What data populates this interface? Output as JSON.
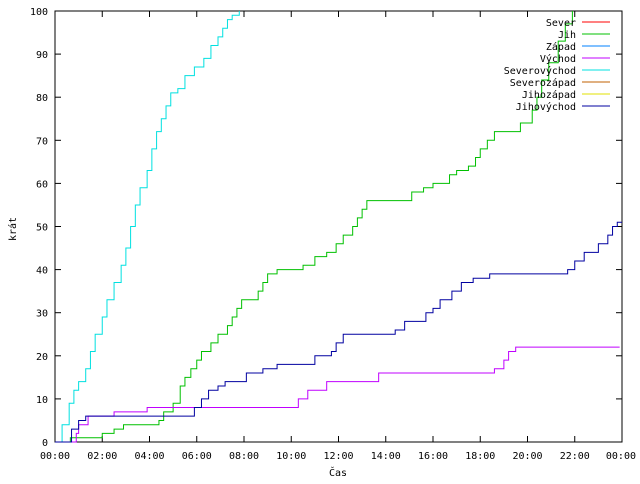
{
  "chart_data": {
    "type": "line",
    "xlabel": "Čas",
    "ylabel": "krát",
    "x_ticks": [
      "00:00",
      "02:00",
      "04:00",
      "06:00",
      "08:00",
      "10:00",
      "12:00",
      "14:00",
      "16:00",
      "18:00",
      "20:00",
      "22:00",
      "00:00"
    ],
    "y_ticks": [
      "0",
      "10",
      "20",
      "30",
      "40",
      "50",
      "60",
      "70",
      "80",
      "90",
      "100"
    ],
    "xlim": [
      0,
      24
    ],
    "ylim": [
      0,
      100
    ],
    "grid": false,
    "legend_position": "top-right",
    "x_unit": "hours",
    "series": [
      {
        "name": "Sever",
        "color": "#ff0000",
        "points": []
      },
      {
        "name": "Jih",
        "color": "#00c000",
        "points": [
          [
            0.0,
            0
          ],
          [
            0.65,
            1
          ],
          [
            2.0,
            2
          ],
          [
            2.5,
            3
          ],
          [
            2.9,
            4
          ],
          [
            4.4,
            5
          ],
          [
            4.6,
            7
          ],
          [
            5.0,
            9
          ],
          [
            5.3,
            13
          ],
          [
            5.5,
            15
          ],
          [
            5.75,
            17
          ],
          [
            6.0,
            19
          ],
          [
            6.2,
            21
          ],
          [
            6.6,
            23
          ],
          [
            6.9,
            25
          ],
          [
            7.3,
            27
          ],
          [
            7.5,
            29
          ],
          [
            7.7,
            31
          ],
          [
            7.9,
            33
          ],
          [
            8.6,
            35
          ],
          [
            8.8,
            37
          ],
          [
            9.0,
            39
          ],
          [
            9.4,
            40
          ],
          [
            10.5,
            41
          ],
          [
            11.0,
            43
          ],
          [
            11.5,
            44
          ],
          [
            11.9,
            46
          ],
          [
            12.2,
            48
          ],
          [
            12.6,
            50
          ],
          [
            12.8,
            52
          ],
          [
            13.0,
            54
          ],
          [
            13.2,
            56
          ],
          [
            15.1,
            58
          ],
          [
            15.6,
            59
          ],
          [
            16.0,
            60
          ],
          [
            16.7,
            62
          ],
          [
            17.0,
            63
          ],
          [
            17.5,
            64
          ],
          [
            17.8,
            66
          ],
          [
            18.0,
            68
          ],
          [
            18.3,
            70
          ],
          [
            18.6,
            72
          ],
          [
            19.7,
            74
          ],
          [
            20.2,
            77
          ],
          [
            20.4,
            80
          ],
          [
            20.6,
            84
          ],
          [
            20.9,
            88
          ],
          [
            21.3,
            93
          ],
          [
            21.6,
            97
          ],
          [
            21.9,
            100
          ]
        ]
      },
      {
        "name": "Západ",
        "color": "#0080ff",
        "points": []
      },
      {
        "name": "Východ",
        "color": "#c000ff",
        "points": [
          [
            0.0,
            0
          ],
          [
            0.9,
            2
          ],
          [
            1.0,
            4
          ],
          [
            1.4,
            6
          ],
          [
            2.5,
            7
          ],
          [
            3.9,
            8
          ],
          [
            10.3,
            10
          ],
          [
            10.7,
            12
          ],
          [
            11.5,
            14
          ],
          [
            13.7,
            16
          ],
          [
            18.6,
            17
          ],
          [
            19.0,
            19
          ],
          [
            19.2,
            21
          ],
          [
            19.5,
            22
          ],
          [
            23.9,
            22
          ]
        ]
      },
      {
        "name": "Severovýchod",
        "color": "#00e0e0",
        "points": [
          [
            0.0,
            0
          ],
          [
            0.3,
            4
          ],
          [
            0.6,
            9
          ],
          [
            0.8,
            12
          ],
          [
            1.0,
            14
          ],
          [
            1.3,
            17
          ],
          [
            1.5,
            21
          ],
          [
            1.7,
            25
          ],
          [
            2.0,
            29
          ],
          [
            2.2,
            33
          ],
          [
            2.5,
            37
          ],
          [
            2.8,
            41
          ],
          [
            3.0,
            45
          ],
          [
            3.2,
            50
          ],
          [
            3.4,
            55
          ],
          [
            3.6,
            59
          ],
          [
            3.9,
            63
          ],
          [
            4.1,
            68
          ],
          [
            4.3,
            72
          ],
          [
            4.5,
            75
          ],
          [
            4.7,
            78
          ],
          [
            4.9,
            81
          ],
          [
            5.2,
            82
          ],
          [
            5.5,
            85
          ],
          [
            5.9,
            87
          ],
          [
            6.3,
            89
          ],
          [
            6.6,
            92
          ],
          [
            6.9,
            94
          ],
          [
            7.1,
            96
          ],
          [
            7.3,
            98
          ],
          [
            7.5,
            99
          ],
          [
            7.8,
            100
          ]
        ]
      },
      {
        "name": "Severozápad",
        "color": "#c06000",
        "points": []
      },
      {
        "name": "Jihozápad",
        "color": "#e0e000",
        "points": []
      },
      {
        "name": "Jihovýchod",
        "color": "#0000a0",
        "points": [
          [
            0.0,
            0
          ],
          [
            0.7,
            3
          ],
          [
            1.0,
            5
          ],
          [
            1.3,
            6
          ],
          [
            5.9,
            8
          ],
          [
            6.2,
            10
          ],
          [
            6.5,
            12
          ],
          [
            6.9,
            13
          ],
          [
            7.2,
            14
          ],
          [
            8.1,
            16
          ],
          [
            8.8,
            17
          ],
          [
            9.4,
            18
          ],
          [
            11.0,
            20
          ],
          [
            11.7,
            21
          ],
          [
            11.9,
            23
          ],
          [
            12.2,
            25
          ],
          [
            14.4,
            26
          ],
          [
            14.8,
            28
          ],
          [
            15.7,
            30
          ],
          [
            16.0,
            31
          ],
          [
            16.3,
            33
          ],
          [
            16.8,
            35
          ],
          [
            17.2,
            37
          ],
          [
            17.7,
            38
          ],
          [
            18.4,
            39
          ],
          [
            21.7,
            40
          ],
          [
            22.0,
            42
          ],
          [
            22.4,
            44
          ],
          [
            23.0,
            46
          ],
          [
            23.4,
            48
          ],
          [
            23.6,
            50
          ],
          [
            23.8,
            51
          ],
          [
            24.0,
            51
          ]
        ]
      }
    ]
  }
}
